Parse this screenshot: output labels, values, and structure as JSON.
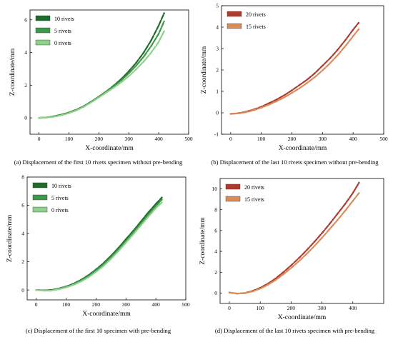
{
  "figure": {
    "captions": [
      "(a) Displacement of the first 10 rivets specimen without pre-bending",
      "(b) Displacement of the last 10 rivets specimen without pre-bending",
      "(c) Displacement of the first 10 specimen with pre-bending",
      "(d) Displacement of the last 10 rivets specimen with pre-bending"
    ]
  },
  "chart_data": [
    {
      "panel": "a",
      "type": "scatter",
      "xlabel": "X-coordinate/mm",
      "ylabel": "Z-coordinate/mm",
      "xlim": [
        -30,
        500
      ],
      "ylim": [
        -1,
        6.6
      ],
      "xticks": [
        0,
        100,
        200,
        300,
        400,
        500
      ],
      "yticks": [
        0,
        2,
        4,
        6
      ],
      "grid": false,
      "legend": "top-left",
      "series": [
        {
          "name": "10 rivets",
          "color": "#1f6b2a",
          "x": [
            0,
            25,
            50,
            75,
            100,
            125,
            150,
            175,
            200,
            225,
            250,
            275,
            300,
            325,
            350,
            375,
            400,
            418
          ],
          "y": [
            0.0,
            0.03,
            0.1,
            0.2,
            0.33,
            0.5,
            0.72,
            1.0,
            1.3,
            1.62,
            1.98,
            2.38,
            2.85,
            3.38,
            4.0,
            4.75,
            5.65,
            6.4
          ]
        },
        {
          "name": "5 rivets",
          "color": "#3a9a4a",
          "x": [
            0,
            25,
            50,
            75,
            100,
            125,
            150,
            175,
            200,
            225,
            250,
            275,
            300,
            325,
            350,
            375,
            400,
            418
          ],
          "y": [
            0.0,
            0.02,
            0.08,
            0.18,
            0.31,
            0.48,
            0.7,
            0.98,
            1.28,
            1.6,
            1.94,
            2.3,
            2.72,
            3.2,
            3.75,
            4.4,
            5.15,
            5.9
          ]
        },
        {
          "name": "0 rivets",
          "color": "#8fd08a",
          "x": [
            0,
            25,
            50,
            75,
            100,
            125,
            150,
            175,
            200,
            225,
            250,
            275,
            300,
            325,
            350,
            375,
            400,
            418
          ],
          "y": [
            0.0,
            0.02,
            0.07,
            0.16,
            0.29,
            0.46,
            0.68,
            0.95,
            1.25,
            1.55,
            1.85,
            2.18,
            2.55,
            2.98,
            3.45,
            4.0,
            4.65,
            5.3
          ]
        }
      ]
    },
    {
      "panel": "b",
      "type": "scatter",
      "xlabel": "X-coordinate/mm",
      "ylabel": "Z-coordinate/mm",
      "xlim": [
        -30,
        500
      ],
      "ylim": [
        -1,
        5
      ],
      "xticks": [
        0,
        100,
        200,
        300,
        400,
        500
      ],
      "yticks": [
        -1,
        0,
        1,
        2,
        3,
        4,
        5
      ],
      "grid": false,
      "legend": "top-left",
      "series": [
        {
          "name": "20 rivets",
          "color": "#b03a2e",
          "x": [
            0,
            25,
            50,
            75,
            100,
            125,
            150,
            175,
            200,
            225,
            250,
            275,
            300,
            325,
            350,
            375,
            400,
            418
          ],
          "y": [
            -0.05,
            -0.02,
            0.05,
            0.15,
            0.28,
            0.45,
            0.62,
            0.82,
            1.05,
            1.3,
            1.55,
            1.85,
            2.2,
            2.55,
            2.95,
            3.4,
            3.88,
            4.2
          ]
        },
        {
          "name": "15 rivets",
          "color": "#d98c5a",
          "x": [
            0,
            25,
            50,
            75,
            100,
            125,
            150,
            175,
            200,
            225,
            250,
            275,
            300,
            325,
            350,
            375,
            400,
            418
          ],
          "y": [
            -0.05,
            -0.03,
            0.03,
            0.12,
            0.24,
            0.38,
            0.54,
            0.72,
            0.93,
            1.15,
            1.4,
            1.67,
            1.98,
            2.32,
            2.7,
            3.12,
            3.58,
            3.9
          ]
        }
      ]
    },
    {
      "panel": "c",
      "type": "scatter",
      "xlabel": "X-coordinate/mm",
      "ylabel": "Z-coordinate/mm",
      "xlim": [
        -30,
        500
      ],
      "ylim": [
        -0.7,
        8
      ],
      "xticks": [
        0,
        100,
        200,
        300,
        400,
        500
      ],
      "yticks": [
        0,
        2,
        4,
        6,
        8
      ],
      "grid": false,
      "legend": "top-left",
      "series": [
        {
          "name": "10 rivets",
          "color": "#1f6b2a",
          "x": [
            0,
            25,
            50,
            75,
            100,
            125,
            150,
            175,
            200,
            225,
            250,
            275,
            300,
            325,
            350,
            375,
            400,
            420
          ],
          "y": [
            0.0,
            -0.02,
            0.0,
            0.1,
            0.25,
            0.45,
            0.72,
            1.05,
            1.45,
            1.9,
            2.42,
            2.98,
            3.6,
            4.2,
            4.85,
            5.5,
            6.1,
            6.55
          ]
        },
        {
          "name": "5 rivets",
          "color": "#3a9a4a",
          "x": [
            0,
            25,
            50,
            75,
            100,
            125,
            150,
            175,
            200,
            225,
            250,
            275,
            300,
            325,
            350,
            375,
            400,
            420
          ],
          "y": [
            0.0,
            -0.03,
            -0.02,
            0.08,
            0.22,
            0.42,
            0.68,
            1.0,
            1.38,
            1.82,
            2.32,
            2.88,
            3.48,
            4.1,
            4.72,
            5.35,
            5.95,
            6.4
          ]
        },
        {
          "name": "0 rivets",
          "color": "#8fd08a",
          "x": [
            0,
            25,
            50,
            75,
            100,
            125,
            150,
            175,
            200,
            225,
            250,
            275,
            300,
            325,
            350,
            375,
            400,
            420
          ],
          "y": [
            0.0,
            -0.05,
            -0.05,
            0.05,
            0.18,
            0.36,
            0.6,
            0.9,
            1.28,
            1.7,
            2.2,
            2.75,
            3.35,
            3.95,
            4.58,
            5.2,
            5.8,
            6.2
          ]
        }
      ]
    },
    {
      "panel": "d",
      "type": "scatter",
      "xlabel": "X-coordinate/mm",
      "ylabel": "Z-coordinate/mm",
      "xlim": [
        -30,
        500
      ],
      "ylim": [
        -1,
        11
      ],
      "xticks": [
        0,
        100,
        200,
        300,
        400
      ],
      "yticks": [
        0,
        2,
        4,
        6,
        8,
        10
      ],
      "grid": false,
      "legend": "top-left",
      "series": [
        {
          "name": "20 rivets",
          "color": "#b03a2e",
          "x": [
            0,
            25,
            50,
            75,
            100,
            125,
            150,
            175,
            200,
            225,
            250,
            275,
            300,
            325,
            350,
            375,
            400,
            420
          ],
          "y": [
            0.05,
            -0.05,
            0.0,
            0.2,
            0.5,
            0.9,
            1.4,
            2.0,
            2.65,
            3.35,
            4.1,
            4.9,
            5.75,
            6.65,
            7.6,
            8.55,
            9.6,
            10.6
          ]
        },
        {
          "name": "15 rivets",
          "color": "#d98c5a",
          "x": [
            0,
            25,
            50,
            75,
            100,
            125,
            150,
            175,
            200,
            225,
            250,
            275,
            300,
            325,
            350,
            375,
            400,
            420
          ],
          "y": [
            0.05,
            -0.05,
            -0.02,
            0.15,
            0.42,
            0.8,
            1.25,
            1.8,
            2.4,
            3.05,
            3.75,
            4.5,
            5.3,
            6.15,
            7.0,
            7.9,
            8.85,
            9.6
          ]
        }
      ]
    }
  ]
}
